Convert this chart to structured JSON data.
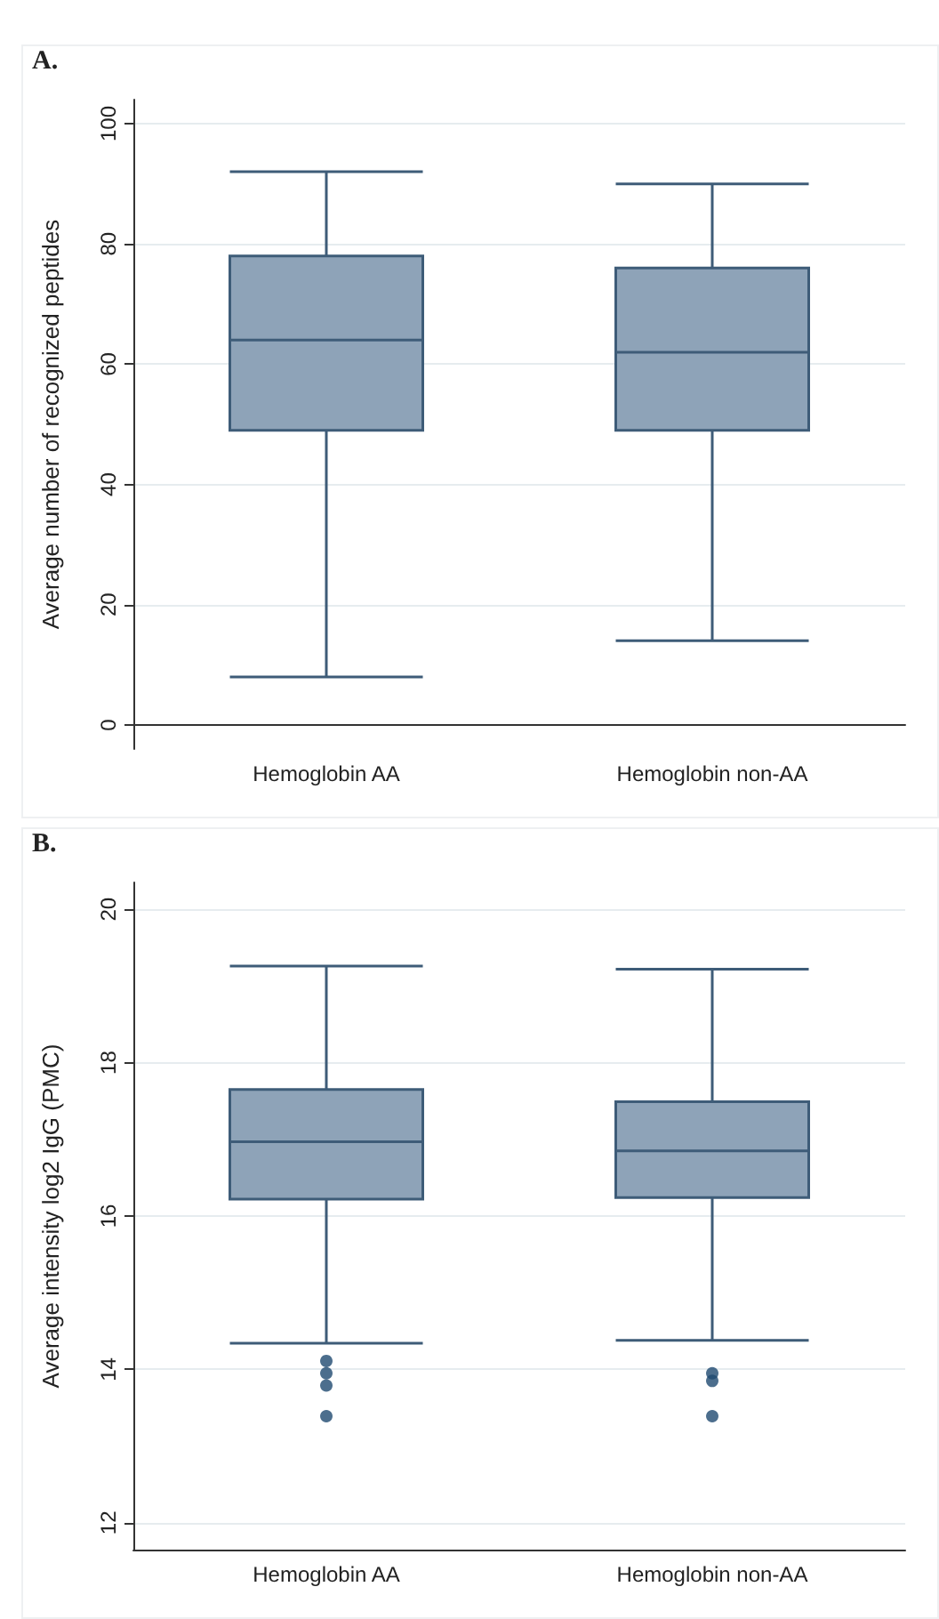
{
  "chart_data": [
    {
      "type": "box",
      "title": "A.",
      "ylabel": "Average number of recognized peptides",
      "categories": [
        "Hemoglobin AA",
        "Hemoglobin non-AA"
      ],
      "color": "#8ea3b8",
      "boxes": [
        {
          "low": 8,
          "q1": 49,
          "median": 64,
          "q3": 78,
          "high": 92
        },
        {
          "low": 14,
          "q1": 49,
          "median": 62,
          "q3": 76,
          "high": 90
        }
      ],
      "ylim": [
        -4,
        104
      ],
      "yticks": [
        0,
        20,
        40,
        60,
        80,
        100
      ],
      "grid": "y"
    },
    {
      "type": "box",
      "title": "B.",
      "ylabel": "Average intensity log2 IgG (PMC)",
      "categories": [
        "Hemoglobin AA",
        "Hemoglobin non-AA"
      ],
      "color": "#8ea3b8",
      "boxes": [
        {
          "low": 14.34,
          "q1": 16.22,
          "median": 16.97,
          "q3": 17.65,
          "high": 19.26,
          "outliers": [
            14.11,
            13.95,
            13.79,
            13.39
          ]
        },
        {
          "low": 14.38,
          "q1": 16.24,
          "median": 16.85,
          "q3": 17.49,
          "high": 19.22,
          "outliers": [
            13.95,
            13.85,
            13.39
          ]
        }
      ],
      "ylim": [
        11.65,
        20.35
      ],
      "yticks": [
        12,
        14,
        16,
        18,
        20
      ],
      "grid": "y"
    }
  ]
}
